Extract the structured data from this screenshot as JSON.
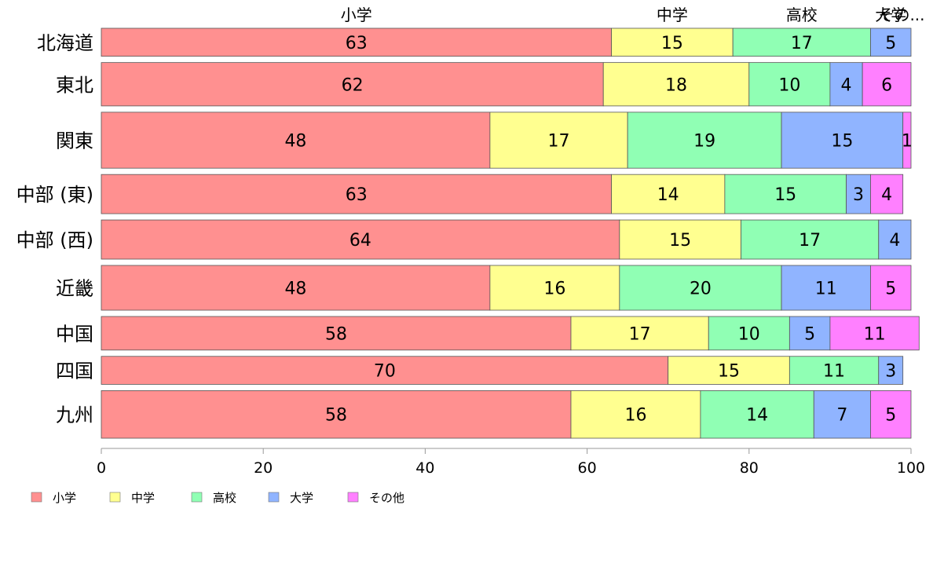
{
  "chart_data": {
    "type": "bar",
    "orientation": "horizontal",
    "stacked": true,
    "categories": [
      "北海道",
      "東北",
      "関東",
      "中部 (東)",
      "中部 (西)",
      "近畿",
      "中国",
      "四国",
      "九州"
    ],
    "category_weights": [
      1.0,
      1.55,
      2.0,
      1.4,
      1.4,
      1.6,
      1.2,
      1.0,
      1.7
    ],
    "series": [
      {
        "name": "小学",
        "color": "#ff9090",
        "values": [
          63,
          62,
          48,
          63,
          64,
          48,
          58,
          70,
          58
        ],
        "labels": [
          "63",
          "62",
          "48",
          "63",
          "64",
          "48",
          "58",
          "70",
          "58"
        ]
      },
      {
        "name": "中学",
        "color": "#ffff90",
        "values": [
          15,
          18,
          17,
          14,
          15,
          16,
          17,
          15,
          16
        ],
        "labels": [
          "15",
          "18",
          "17",
          "14",
          "15",
          "16",
          "17",
          "15",
          "16"
        ]
      },
      {
        "name": "高校",
        "color": "#90ffb4",
        "values": [
          17,
          10,
          19,
          15,
          17,
          20,
          10,
          11,
          14
        ],
        "labels": [
          "17",
          "10",
          "19",
          "15",
          "17",
          "20",
          "10",
          "11",
          "14"
        ]
      },
      {
        "name": "大学",
        "color": "#90b4ff",
        "values": [
          5,
          4,
          15,
          3,
          4,
          11,
          5,
          3,
          7
        ],
        "labels": [
          "5",
          "4",
          "15",
          "3",
          "4",
          "11",
          "5",
          "3",
          "7"
        ]
      },
      {
        "name": "その他",
        "color": "#ff80ff",
        "values": [
          0,
          6,
          1,
          4,
          0,
          5,
          11,
          0,
          5
        ],
        "labels": [
          "",
          "6",
          "1",
          "4",
          "",
          "5",
          "11",
          "",
          "5"
        ]
      }
    ],
    "top_labels": [
      "小学",
      "中学",
      "高校",
      "大学",
      "その..."
    ],
    "xlim": [
      0,
      100
    ],
    "xticks": [
      "0",
      "20",
      "40",
      "60",
      "80",
      "100"
    ],
    "legend": {
      "position": "bottom-left",
      "items": [
        "小学",
        "中学",
        "高校",
        "大学",
        "その他"
      ]
    },
    "grid": false
  }
}
